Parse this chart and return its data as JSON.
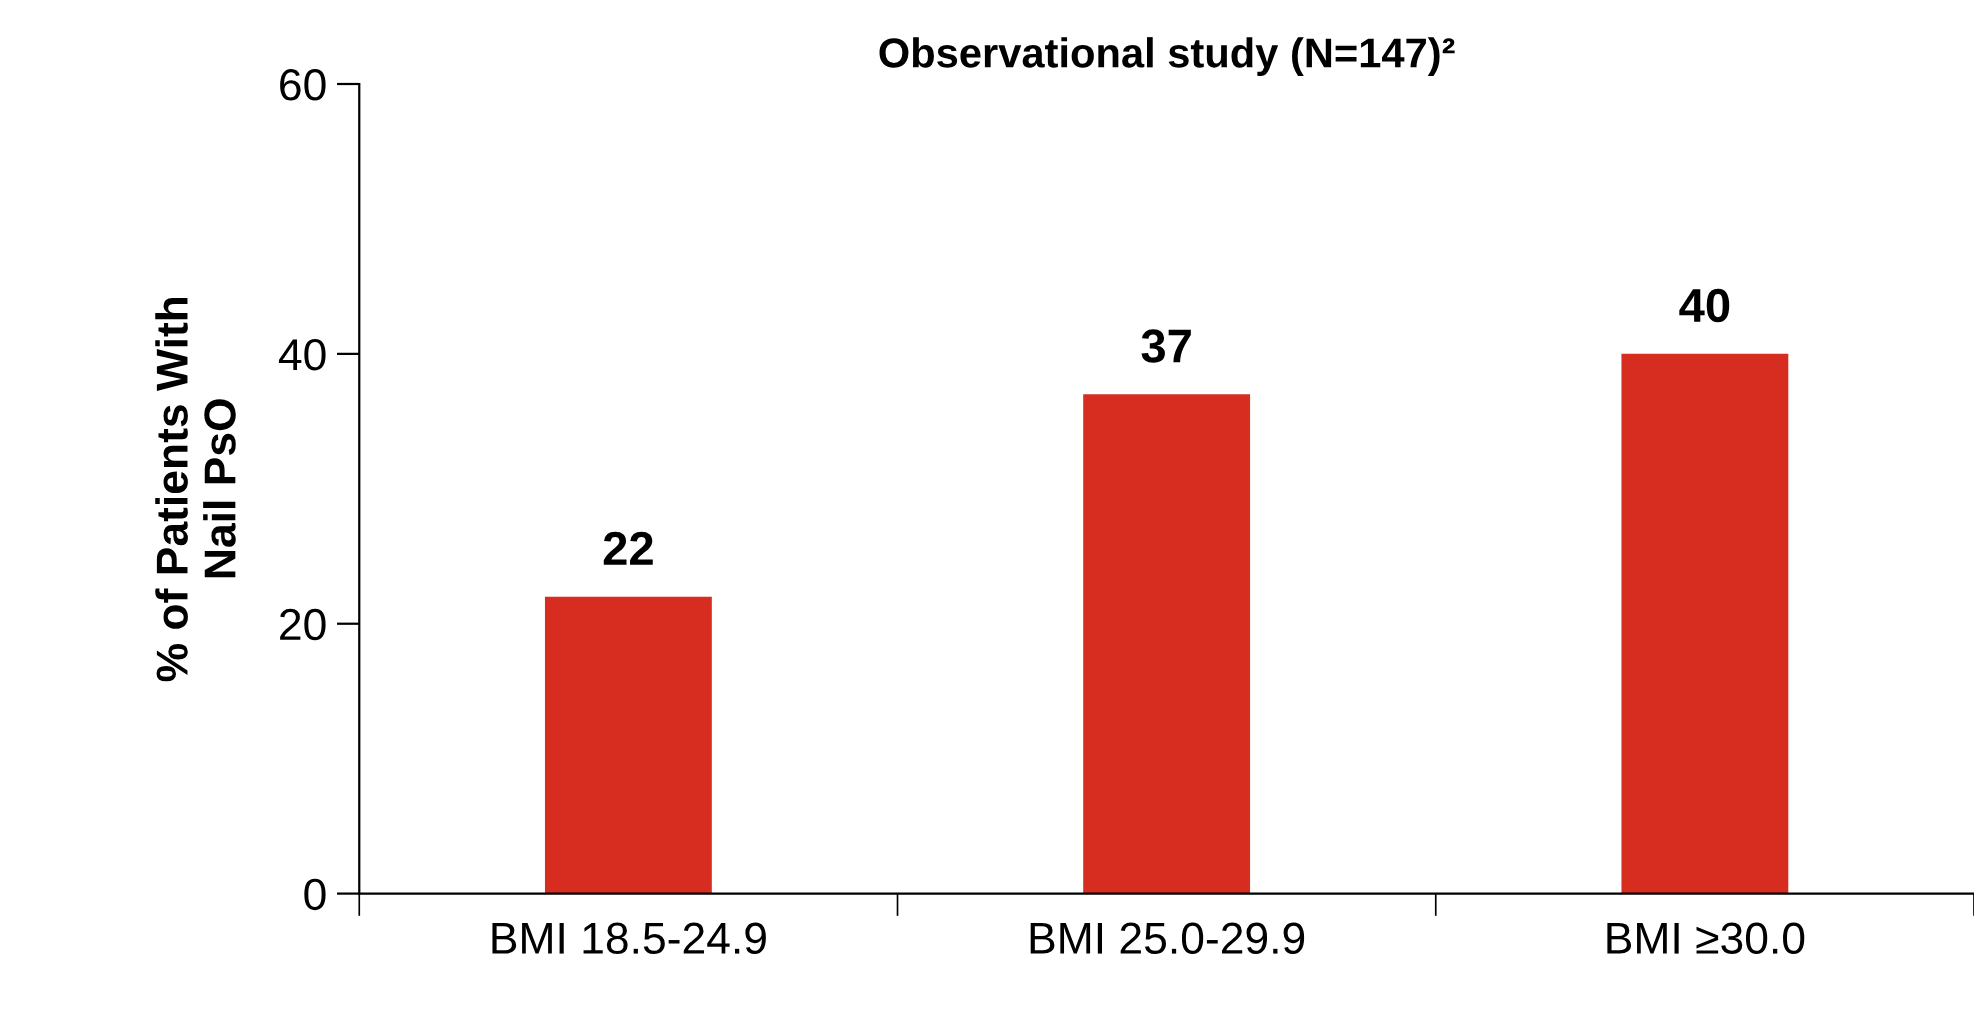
{
  "chart_data": {
    "type": "bar",
    "title": "Observational study (N=147)²",
    "ylabel": "% of Patients With\nNail PsO",
    "categories": [
      "BMI 18.5-24.9",
      "BMI 25.0-29.9",
      "BMI ≥30.0"
    ],
    "values": [
      22,
      37,
      40
    ],
    "color": "#d62d20",
    "ylim": [
      0,
      60
    ],
    "yticks": [
      0,
      20,
      40,
      60
    ],
    "data_labels": true,
    "grid": false,
    "legend": false
  }
}
